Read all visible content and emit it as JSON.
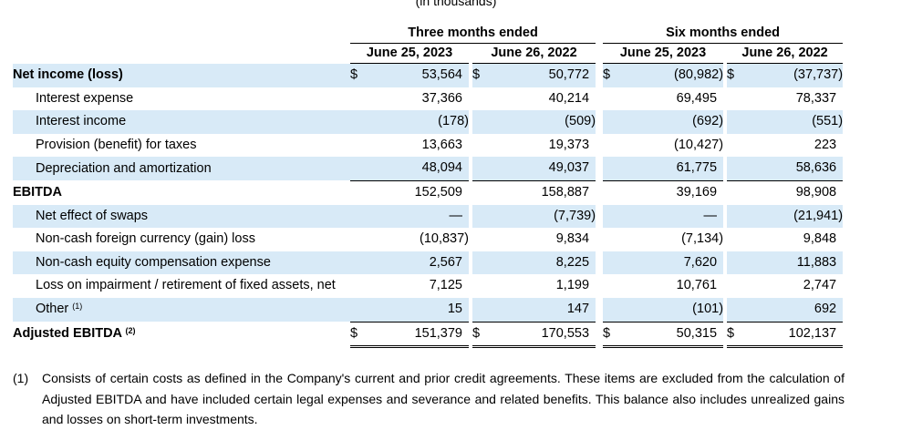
{
  "page": {
    "top_caption": "(in thousands)",
    "period_groups": [
      "Three months ended",
      "Six months ended"
    ],
    "columns": [
      "June 25, 2023",
      "June 26, 2022",
      "June 25, 2023",
      "June 26, 2022"
    ],
    "currency_symbol": "$",
    "rows": [
      {
        "label": "Net income (loss)",
        "values": [
          "53,564",
          "50,772",
          "(80,982)",
          "(37,737)"
        ]
      },
      {
        "label": "Interest expense",
        "values": [
          "37,366",
          "40,214",
          "69,495",
          "78,337"
        ]
      },
      {
        "label": "Interest income",
        "values": [
          "(178)",
          "(509)",
          "(692)",
          "(551)"
        ]
      },
      {
        "label": "Provision (benefit) for taxes",
        "values": [
          "13,663",
          "19,373",
          "(10,427)",
          "223"
        ]
      },
      {
        "label": "Depreciation and amortization",
        "values": [
          "48,094",
          "49,037",
          "61,775",
          "58,636"
        ]
      },
      {
        "label": "EBITDA",
        "values": [
          "152,509",
          "158,887",
          "39,169",
          "98,908"
        ]
      },
      {
        "label": "Net effect of swaps",
        "values": [
          "—",
          "(7,739)",
          "—",
          "(21,941)"
        ]
      },
      {
        "label": "Non-cash foreign currency (gain) loss",
        "values": [
          "(10,837)",
          "9,834",
          "(7,134)",
          "9,848"
        ]
      },
      {
        "label": "Non-cash equity compensation expense",
        "values": [
          "2,567",
          "8,225",
          "7,620",
          "11,883"
        ]
      },
      {
        "label": "Loss on impairment / retirement of fixed assets, net",
        "values": [
          "7,125",
          "1,199",
          "10,761",
          "2,747"
        ]
      },
      {
        "label": "Other",
        "note": "(1)",
        "values": [
          "15",
          "147",
          "(101)",
          "692"
        ]
      },
      {
        "label": "Adjusted EBITDA",
        "note": "(2)",
        "values": [
          "151,379",
          "170,553",
          "50,315",
          "102,137"
        ]
      }
    ],
    "footnote": {
      "marker": "(1)",
      "text": "Consists of certain costs as defined in the Company's current and prior credit agreements. These items are excluded from the calculation of Adjusted EBITDA and have included certain legal expenses and severance and related benefits. This balance also includes unrealized gains and losses on short-term investments."
    }
  }
}
